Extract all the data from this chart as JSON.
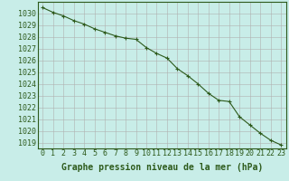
{
  "x": [
    0,
    1,
    2,
    3,
    4,
    5,
    6,
    7,
    8,
    9,
    10,
    11,
    12,
    13,
    14,
    15,
    16,
    17,
    18,
    19,
    20,
    21,
    22,
    23
  ],
  "y": [
    1030.5,
    1030.1,
    1029.8,
    1029.4,
    1029.1,
    1028.7,
    1028.4,
    1028.1,
    1027.9,
    1027.8,
    1027.1,
    1026.6,
    1026.2,
    1025.3,
    1024.7,
    1024.0,
    1023.2,
    1022.6,
    1022.5,
    1021.2,
    1020.5,
    1019.8,
    1019.2,
    1018.8
  ],
  "line_color": "#2d5a1b",
  "marker": "+",
  "bg_color": "#c8ede8",
  "grid_color": "#b0b0b0",
  "xlabel": "Graphe pression niveau de la mer (hPa)",
  "ylim_min": 1018.5,
  "ylim_max": 1031.0,
  "xlim_min": -0.5,
  "xlim_max": 23.5,
  "yticks": [
    1019,
    1020,
    1021,
    1022,
    1023,
    1024,
    1025,
    1026,
    1027,
    1028,
    1029,
    1030
  ],
  "xticks": [
    0,
    1,
    2,
    3,
    4,
    5,
    6,
    7,
    8,
    9,
    10,
    11,
    12,
    13,
    14,
    15,
    16,
    17,
    18,
    19,
    20,
    21,
    22,
    23
  ],
  "xlabel_fontsize": 7.0,
  "tick_fontsize": 6.0,
  "line_width": 0.8,
  "marker_size": 3.5,
  "marker_ew": 0.8
}
